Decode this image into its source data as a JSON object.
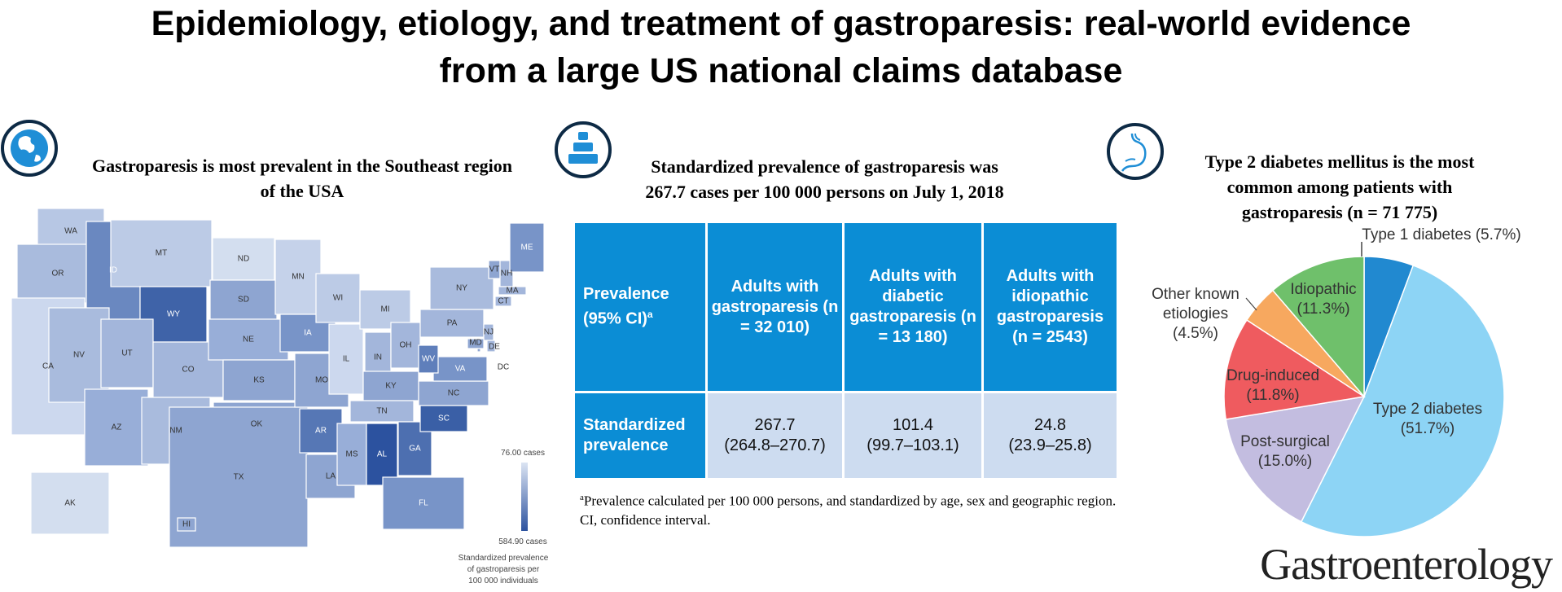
{
  "title": {
    "line1": "Epidemiology, etiology, and treatment of gastroparesis: real-world evidence",
    "line2": "from a large US national claims database"
  },
  "panel_map": {
    "icon": "globe-icon",
    "heading_line1": "Gastroparesis is most prevalent in the Southeast region",
    "heading_line2": "of the USA",
    "legend": {
      "min_label": "76.00 cases",
      "max_label": "584.90 cases",
      "caption_line1": "Standardized prevalence",
      "caption_line2": "of gastroparesis per",
      "caption_line3": "100 000 individuals",
      "min_color": "#dbe4f3",
      "max_color": "#2c529f"
    },
    "states": [
      {
        "code": "WA",
        "color": "#b7c7e4"
      },
      {
        "code": "OR",
        "color": "#a9bbdd"
      },
      {
        "code": "CA",
        "color": "#ccd8ee"
      },
      {
        "code": "ID",
        "color": "#6a88c0"
      },
      {
        "code": "NV",
        "color": "#a9bbdd"
      },
      {
        "code": "MT",
        "color": "#bccbe6"
      },
      {
        "code": "WY",
        "color": "#3f63a8"
      },
      {
        "code": "UT",
        "color": "#a3b6db"
      },
      {
        "code": "CO",
        "color": "#a3b6db"
      },
      {
        "code": "AZ",
        "color": "#98aed8"
      },
      {
        "code": "NM",
        "color": "#a9bbdd"
      },
      {
        "code": "ND",
        "color": "#d3deef"
      },
      {
        "code": "SD",
        "color": "#8ea5d1"
      },
      {
        "code": "NE",
        "color": "#98aed8"
      },
      {
        "code": "KS",
        "color": "#8ea5d1"
      },
      {
        "code": "OK",
        "color": "#8ea5d1"
      },
      {
        "code": "TX",
        "color": "#8ea5d1"
      },
      {
        "code": "MN",
        "color": "#c5d2ea"
      },
      {
        "code": "IA",
        "color": "#7894c8"
      },
      {
        "code": "MO",
        "color": "#8ea5d1"
      },
      {
        "code": "AR",
        "color": "#5677b5"
      },
      {
        "code": "LA",
        "color": "#8ea5d1"
      },
      {
        "code": "WI",
        "color": "#bccbe6"
      },
      {
        "code": "IL",
        "color": "#ccd8ee"
      },
      {
        "code": "MI",
        "color": "#bccbe6"
      },
      {
        "code": "IN",
        "color": "#a3b6db"
      },
      {
        "code": "OH",
        "color": "#a3b6db"
      },
      {
        "code": "KY",
        "color": "#8ea5d1"
      },
      {
        "code": "TN",
        "color": "#a3b6db"
      },
      {
        "code": "MS",
        "color": "#98aed8"
      },
      {
        "code": "AL",
        "color": "#2c529f"
      },
      {
        "code": "GA",
        "color": "#4d6fb0"
      },
      {
        "code": "FL",
        "color": "#7894c8"
      },
      {
        "code": "SC",
        "color": "#3a5fa6"
      },
      {
        "code": "NC",
        "color": "#8ea5d1"
      },
      {
        "code": "VA",
        "color": "#7894c8"
      },
      {
        "code": "WV",
        "color": "#5f7fbb"
      },
      {
        "code": "PA",
        "color": "#a3b6db"
      },
      {
        "code": "NY",
        "color": "#a9bbdd"
      },
      {
        "code": "VT",
        "color": "#8ea5d1"
      },
      {
        "code": "NH",
        "color": "#a3b6db"
      },
      {
        "code": "ME",
        "color": "#7894c8"
      },
      {
        "code": "MA",
        "color": "#a3b6db"
      },
      {
        "code": "CT",
        "color": "#a3b6db"
      },
      {
        "code": "NJ",
        "color": "#a3b6db"
      },
      {
        "code": "MD",
        "color": "#8ea5d1"
      },
      {
        "code": "DE",
        "color": "#a3b6db"
      },
      {
        "code": "DC",
        "color": "#8ea5d1"
      },
      {
        "code": "AK",
        "color": "#d3deef"
      },
      {
        "code": "HI",
        "color": "#8ea5d1"
      }
    ]
  },
  "panel_table": {
    "icon": "population-icon",
    "heading_line1": "Standardized prevalence of gastroparesis was",
    "heading_line2": "267.7 cases per 100 000 persons on July 1, 2018",
    "header": {
      "col0": "Prevalence (95% CI)",
      "col0_sup": "a",
      "col1": "Adults with gastroparesis (n = 32 010)",
      "col2": "Adults with diabetic gastroparesis (n = 13 180)",
      "col3": "Adults with idiopathic gastroparesis (n = 2543)"
    },
    "row": {
      "label": "Standardized prevalence",
      "values": [
        {
          "value": "267.7",
          "ci": "(264.8–270.7)"
        },
        {
          "value": "101.4",
          "ci": "(99.7–103.1)"
        },
        {
          "value": "24.8",
          "ci": "(23.9–25.8)"
        }
      ]
    },
    "footnote_sup": "a",
    "footnote": "Prevalence calculated per 100 000 persons, and standardized by age, sex and geographic region. CI, confidence interval.",
    "header_color": "#0b8dd5",
    "cell_color": "#cddcf0"
  },
  "panel_pie": {
    "icon": "stomach-icon",
    "heading_line1": "Type 2 diabetes mellitus is the most",
    "heading_line2": "common among patients with",
    "heading_line3": "gastroparesis (n = 71 775)"
  },
  "chart_data": {
    "type": "pie",
    "title": "Type 2 diabetes mellitus is the most common among patients with gastroparesis (n = 71 775)",
    "start": "top",
    "direction": "clockwise",
    "slices": [
      {
        "name": "Type 1 diabetes",
        "value": 5.7,
        "label": "Type 1 diabetes (5.7%)",
        "color": "#2189d0"
      },
      {
        "name": "Type 2 diabetes",
        "value": 51.7,
        "label_line1": "Type 2 diabetes",
        "label_line2": "(51.7%)",
        "color": "#8dd4f5"
      },
      {
        "name": "Post-surgical",
        "value": 15.0,
        "label_line1": "Post-surgical",
        "label_line2": "(15.0%)",
        "color": "#c3bde0"
      },
      {
        "name": "Drug-induced",
        "value": 11.8,
        "label_line1": "Drug-induced",
        "label_line2": "(11.8%)",
        "color": "#ef5b5f"
      },
      {
        "name": "Other known etiologies",
        "value": 4.5,
        "label_line1": "Other known",
        "label_line2": "etiologies",
        "label_line3": "(4.5%)",
        "color": "#f7a85f"
      },
      {
        "name": "Idiopathic",
        "value": 11.3,
        "label_line1": "Idiopathic",
        "label_line2": "(11.3%)",
        "color": "#6fc06b"
      }
    ]
  },
  "journal": "Gastroenterology"
}
